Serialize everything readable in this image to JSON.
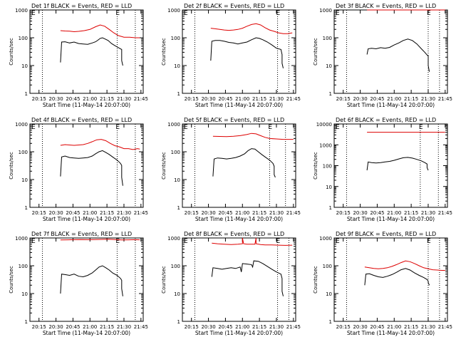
{
  "figure": {
    "xlabel": "Start Time (11-May-14 20:07:00)",
    "ylabel": "Counts/sec",
    "xticks": [
      "20:15",
      "20:30",
      "20:45",
      "21:00",
      "21:15",
      "21:30",
      "21:45"
    ],
    "series_colors": {
      "events": "#000000",
      "lld": "#dd0000"
    }
  },
  "chart_data": [
    {
      "type": "line",
      "title": "Det 1f BLACK = Events, RED = LLD",
      "yscale": "log",
      "ylim": [
        1,
        1000
      ],
      "yticks": [
        "1",
        "10",
        "100",
        "1000"
      ],
      "xlim": [
        "20:07",
        "21:47"
      ],
      "marker_label": "E",
      "dotted_x": [
        "20:18",
        "21:24",
        "21:40"
      ],
      "series": [
        {
          "color": "#000000",
          "x": [
            "20:34",
            "20:35",
            "20:38",
            "20:42",
            "20:46",
            "20:50",
            "20:54",
            "20:58",
            "21:02",
            "21:05",
            "21:07",
            "21:09",
            "21:11",
            "21:13",
            "21:16",
            "21:19",
            "21:22",
            "21:26",
            "21:28",
            "21:28",
            "21:29"
          ],
          "y": [
            13,
            70,
            72,
            65,
            70,
            62,
            60,
            58,
            65,
            72,
            82,
            95,
            100,
            92,
            80,
            62,
            52,
            42,
            38,
            15,
            10
          ]
        },
        {
          "color": "#dd0000",
          "x": [
            "20:34",
            "20:38",
            "20:42",
            "20:46",
            "20:50",
            "20:55",
            "21:00",
            "21:05",
            "21:09",
            "21:13",
            "21:17",
            "21:21",
            "21:25",
            "21:30",
            "21:35",
            "21:40",
            "21:44"
          ],
          "y": [
            180,
            175,
            172,
            165,
            170,
            180,
            200,
            250,
            290,
            260,
            200,
            150,
            120,
            105,
            105,
            100,
            100
          ]
        }
      ]
    },
    {
      "type": "line",
      "title": "Det 2f BLACK = Events, RED = LLD",
      "yscale": "log",
      "ylim": [
        1,
        1000
      ],
      "yticks": [
        "1",
        "10",
        "100",
        "1000"
      ],
      "xlim": [
        "20:07",
        "21:47"
      ],
      "marker_label": "E",
      "dotted_x": [
        "20:18",
        "21:31",
        "21:41"
      ],
      "series": [
        {
          "color": "#000000",
          "x": [
            "20:32",
            "20:33",
            "20:36",
            "20:40",
            "20:44",
            "20:48",
            "20:52",
            "20:56",
            "21:00",
            "21:04",
            "21:08",
            "21:12",
            "21:15",
            "21:18",
            "21:22",
            "21:26",
            "21:30",
            "21:34",
            "21:35",
            "21:35",
            "21:36"
          ],
          "y": [
            15,
            75,
            80,
            80,
            75,
            68,
            65,
            60,
            65,
            70,
            85,
            100,
            95,
            85,
            70,
            55,
            42,
            38,
            25,
            12,
            8
          ]
        },
        {
          "color": "#dd0000",
          "x": [
            "20:32",
            "20:36",
            "20:40",
            "20:44",
            "20:48",
            "20:52",
            "20:56",
            "21:00",
            "21:04",
            "21:08",
            "21:12",
            "21:16",
            "21:20",
            "21:24",
            "21:28",
            "21:32",
            "21:36",
            "21:40",
            "21:44"
          ],
          "y": [
            220,
            210,
            200,
            190,
            185,
            190,
            200,
            220,
            260,
            300,
            320,
            290,
            230,
            190,
            170,
            150,
            140,
            140,
            150
          ]
        }
      ]
    },
    {
      "type": "line",
      "title": "Det 3f BLACK = Events, RED = LLD",
      "yscale": "log",
      "ylim": [
        1,
        1000
      ],
      "yticks": [
        "1",
        "10",
        "100",
        "1000"
      ],
      "xlim": [
        "20:07",
        "21:47"
      ],
      "marker_label": "E",
      "dotted_x": [
        "20:18",
        "21:30",
        "21:40"
      ],
      "series": [
        {
          "color": "#000000",
          "x": [
            "20:36",
            "20:37",
            "20:40",
            "20:44",
            "20:48",
            "20:52",
            "20:56",
            "21:00",
            "21:04",
            "21:08",
            "21:12",
            "21:16",
            "21:20",
            "21:24",
            "21:27",
            "21:29",
            "21:30",
            "21:30",
            "21:31"
          ],
          "y": [
            25,
            40,
            42,
            40,
            44,
            42,
            45,
            55,
            65,
            80,
            90,
            80,
            60,
            40,
            30,
            24,
            22,
            10,
            6
          ]
        },
        {
          "color": "#dd0000",
          "x": [
            "20:36",
            "21:45"
          ],
          "y": [
            1000,
            1000
          ]
        }
      ]
    },
    {
      "type": "line",
      "title": "Det 4f BLACK = Events, RED = LLD",
      "yscale": "log",
      "ylim": [
        1,
        1000
      ],
      "yticks": [
        "1",
        "10",
        "100",
        "1000"
      ],
      "xlim": [
        "20:07",
        "21:47"
      ],
      "marker_label": "E",
      "dotted_x": [
        "20:18",
        "21:24",
        "21:40"
      ],
      "series": [
        {
          "color": "#000000",
          "x": [
            "20:34",
            "20:35",
            "20:38",
            "20:42",
            "20:46",
            "20:50",
            "20:54",
            "20:58",
            "21:02",
            "21:05",
            "21:08",
            "21:11",
            "21:14",
            "21:17",
            "21:20",
            "21:24",
            "21:27",
            "21:28",
            "21:28",
            "21:29"
          ],
          "y": [
            13,
            65,
            70,
            62,
            60,
            58,
            60,
            62,
            70,
            85,
            100,
            110,
            95,
            80,
            65,
            50,
            38,
            32,
            12,
            6
          ]
        },
        {
          "color": "#dd0000",
          "x": [
            "20:34",
            "20:38",
            "20:42",
            "20:46",
            "20:50",
            "20:54",
            "20:58",
            "21:02",
            "21:06",
            "21:10",
            "21:14",
            "21:18",
            "21:22",
            "21:26",
            "21:30",
            "21:34",
            "21:38",
            "21:42",
            "21:44"
          ],
          "y": [
            170,
            180,
            175,
            170,
            175,
            180,
            200,
            230,
            270,
            280,
            250,
            200,
            165,
            150,
            130,
            130,
            120,
            130,
            125
          ]
        }
      ]
    },
    {
      "type": "line",
      "title": "Det 5f BLACK = Events, RED = LLD",
      "yscale": "log",
      "ylim": [
        1,
        1000
      ],
      "yticks": [
        "1",
        "10",
        "100",
        "1000"
      ],
      "xlim": [
        "20:07",
        "21:47"
      ],
      "marker_label": "E",
      "dotted_x": [
        "20:18",
        "21:24",
        "21:38"
      ],
      "series": [
        {
          "color": "#000000",
          "x": [
            "20:34",
            "20:35",
            "20:38",
            "20:42",
            "20:46",
            "20:50",
            "20:54",
            "20:58",
            "21:02",
            "21:05",
            "21:08",
            "21:11",
            "21:14",
            "21:17",
            "21:20",
            "21:24",
            "21:27",
            "21:28",
            "21:28",
            "21:29"
          ],
          "y": [
            13,
            55,
            60,
            58,
            55,
            58,
            62,
            70,
            85,
            110,
            130,
            125,
            100,
            80,
            65,
            50,
            38,
            30,
            15,
            12
          ]
        },
        {
          "color": "#dd0000",
          "x": [
            "20:34",
            "20:40",
            "20:46",
            "20:52",
            "20:58",
            "21:04",
            "21:08",
            "21:12",
            "21:16",
            "21:20",
            "21:24",
            "21:30",
            "21:36",
            "21:42",
            "21:45"
          ],
          "y": [
            360,
            355,
            350,
            360,
            380,
            420,
            460,
            440,
            380,
            330,
            300,
            290,
            280,
            280,
            280
          ]
        }
      ]
    },
    {
      "type": "line",
      "title": "Det 6f BLACK = Events, RED = LLD",
      "yscale": "log",
      "ylim": [
        1,
        10000
      ],
      "yticks": [
        "1",
        "10",
        "100",
        "1000",
        "10000"
      ],
      "xlim": [
        "20:07",
        "21:47"
      ],
      "marker_label": "E",
      "dotted_x": [
        "20:18",
        "21:23",
        "21:39"
      ],
      "series": [
        {
          "color": "#000000",
          "x": [
            "20:36",
            "20:37",
            "20:40",
            "20:44",
            "20:48",
            "20:52",
            "20:56",
            "21:00",
            "21:04",
            "21:08",
            "21:12",
            "21:16",
            "21:20",
            "21:24",
            "21:27",
            "21:29",
            "21:29",
            "21:30"
          ],
          "y": [
            60,
            150,
            140,
            135,
            140,
            150,
            160,
            180,
            210,
            240,
            250,
            230,
            200,
            170,
            140,
            120,
            80,
            60
          ]
        },
        {
          "color": "#dd0000",
          "x": [
            "20:36",
            "21:45"
          ],
          "y": [
            4000,
            4000
          ]
        }
      ]
    },
    {
      "type": "line",
      "title": "Det 7f BLACK = Events, RED = LLD",
      "yscale": "log",
      "ylim": [
        1,
        1000
      ],
      "yticks": [
        "1",
        "10",
        "100",
        "1000"
      ],
      "xlim": [
        "20:07",
        "21:47"
      ],
      "marker_label": "E",
      "dotted_x": [
        "20:18",
        "21:24",
        "21:40"
      ],
      "series": [
        {
          "color": "#000000",
          "x": [
            "20:34",
            "20:35",
            "20:38",
            "20:42",
            "20:46",
            "20:50",
            "20:54",
            "20:58",
            "21:02",
            "21:05",
            "21:08",
            "21:11",
            "21:14",
            "21:17",
            "21:20",
            "21:24",
            "21:27",
            "21:28",
            "21:28",
            "21:29"
          ],
          "y": [
            10,
            50,
            48,
            45,
            50,
            42,
            40,
            45,
            55,
            70,
            90,
            100,
            85,
            70,
            55,
            45,
            35,
            30,
            15,
            8
          ]
        },
        {
          "color": "#dd0000",
          "x": [
            "20:34",
            "20:40",
            "20:46",
            "20:52",
            "20:58",
            "21:04",
            "21:10",
            "21:16",
            "21:22",
            "21:28",
            "21:34",
            "21:40",
            "21:44"
          ],
          "y": [
            850,
            860,
            870,
            880,
            870,
            880,
            890,
            900,
            880,
            850,
            860,
            870,
            860
          ]
        }
      ]
    },
    {
      "type": "line",
      "title": "Det 8f BLACK = Events, RED = LLD",
      "yscale": "log",
      "ylim": [
        1,
        1000
      ],
      "yticks": [
        "1",
        "10",
        "100",
        "1000"
      ],
      "xlim": [
        "20:07",
        "21:47"
      ],
      "marker_label": "E",
      "dotted_x": [
        "20:18",
        "21:31",
        "21:41"
      ],
      "series": [
        {
          "color": "#000000",
          "x": [
            "20:33",
            "20:34",
            "20:38",
            "20:42",
            "20:46",
            "20:50",
            "20:54",
            "20:58",
            "20:59",
            "21:00",
            "21:04",
            "21:08",
            "21:09",
            "21:10",
            "21:14",
            "21:18",
            "21:22",
            "21:26",
            "21:30",
            "21:34",
            "21:35",
            "21:35",
            "21:36"
          ],
          "y": [
            40,
            85,
            80,
            75,
            80,
            85,
            80,
            90,
            60,
            120,
            115,
            110,
            90,
            150,
            145,
            120,
            95,
            75,
            60,
            50,
            35,
            12,
            8
          ]
        },
        {
          "color": "#dd0000",
          "x": [
            "20:33",
            "20:38",
            "20:44",
            "20:50",
            "20:56",
            "21:00",
            "21:00",
            "21:01",
            "21:04",
            "21:08",
            "21:11",
            "21:12",
            "21:12",
            "21:16",
            "21:20",
            "21:26",
            "21:32",
            "21:38",
            "21:44"
          ],
          "y": [
            650,
            620,
            600,
            580,
            600,
            620,
            1000,
            620,
            600,
            600,
            600,
            1000,
            620,
            580,
            560,
            560,
            550,
            540,
            550
          ]
        }
      ]
    },
    {
      "type": "line",
      "title": "Det 9f BLACK = Events, RED = LLD",
      "yscale": "log",
      "ylim": [
        1,
        1000
      ],
      "yticks": [
        "1",
        "10",
        "100",
        "1000"
      ],
      "xlim": [
        "20:07",
        "21:47"
      ],
      "marker_label": "E",
      "dotted_x": [
        "20:18",
        "21:30",
        "21:40"
      ],
      "series": [
        {
          "color": "#000000",
          "x": [
            "20:34",
            "20:35",
            "20:38",
            "20:42",
            "20:46",
            "20:50",
            "20:54",
            "20:58",
            "21:02",
            "21:06",
            "21:10",
            "21:14",
            "21:18",
            "21:22",
            "21:26",
            "21:29",
            "21:30",
            "21:30",
            "21:31"
          ],
          "y": [
            20,
            50,
            52,
            45,
            40,
            38,
            42,
            48,
            58,
            72,
            80,
            70,
            55,
            45,
            38,
            32,
            28,
            25,
            20
          ]
        },
        {
          "color": "#dd0000",
          "x": [
            "20:34",
            "20:38",
            "20:42",
            "20:46",
            "20:50",
            "20:54",
            "20:58",
            "21:02",
            "21:06",
            "21:10",
            "21:14",
            "21:18",
            "21:22",
            "21:26",
            "21:30",
            "21:34",
            "21:38",
            "21:42",
            "21:45"
          ],
          "y": [
            90,
            85,
            80,
            78,
            80,
            85,
            95,
            110,
            130,
            150,
            140,
            120,
            100,
            85,
            78,
            72,
            70,
            68,
            68
          ]
        }
      ]
    }
  ]
}
